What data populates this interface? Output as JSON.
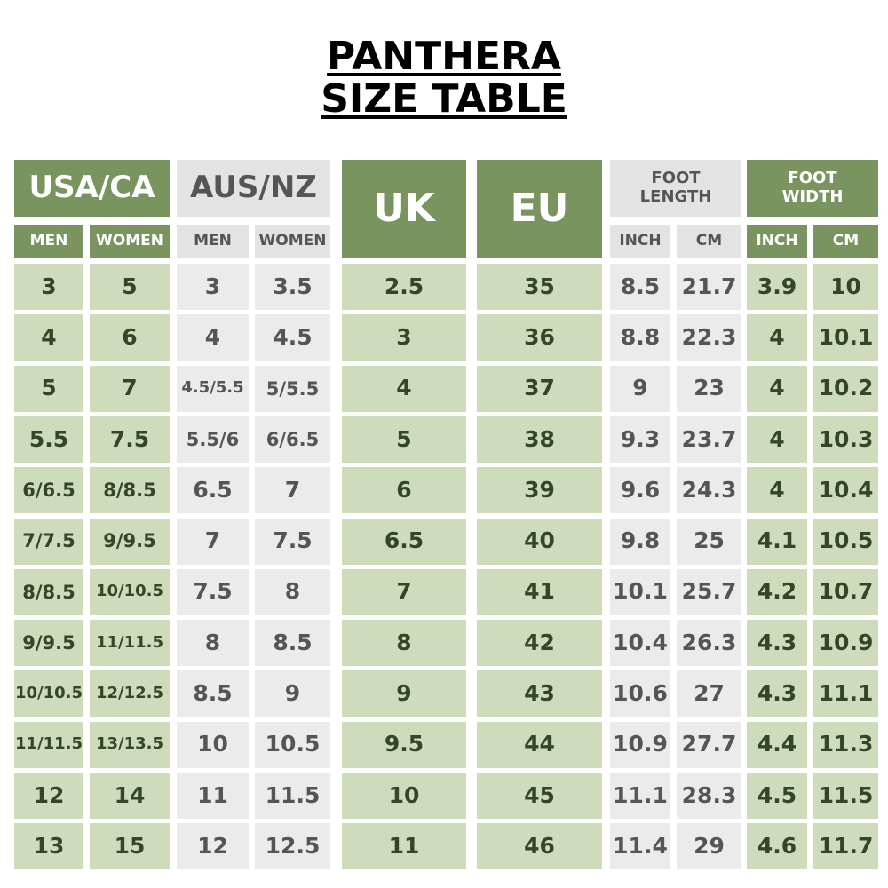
{
  "title": [
    "PANTHERA",
    "SIZE TABLE"
  ],
  "groups": [
    {
      "label": "USA/CA",
      "sub": [
        "MEN",
        "WOMEN"
      ]
    },
    {
      "label": "AUS/NZ",
      "sub": [
        "MEN",
        "WOMEN"
      ]
    },
    {
      "label": "UK"
    },
    {
      "label": "EU"
    },
    {
      "label": "FOOT LENGTH",
      "sub": [
        "INCH",
        "CM"
      ]
    },
    {
      "label": "FOOT WIDTH",
      "sub": [
        "INCH",
        "CM"
      ]
    }
  ],
  "rows": [
    [
      "3",
      "5",
      "3",
      "3.5",
      "2.5",
      "35",
      "8.5",
      "21.7",
      "3.9",
      "10"
    ],
    [
      "4",
      "6",
      "4",
      "4.5",
      "3",
      "36",
      "8.8",
      "22.3",
      "4",
      "10.1"
    ],
    [
      "5",
      "7",
      "4.5/5.5",
      "5/5.5",
      "4",
      "37",
      "9",
      "23",
      "4",
      "10.2"
    ],
    [
      "5.5",
      "7.5",
      "5.5/6",
      "6/6.5",
      "5",
      "38",
      "9.3",
      "23.7",
      "4",
      "10.3"
    ],
    [
      "6/6.5",
      "8/8.5",
      "6.5",
      "7",
      "6",
      "39",
      "9.6",
      "24.3",
      "4",
      "10.4"
    ],
    [
      "7/7.5",
      "9/9.5",
      "7",
      "7.5",
      "6.5",
      "40",
      "9.8",
      "25",
      "4.1",
      "10.5"
    ],
    [
      "8/8.5",
      "10/10.5",
      "7.5",
      "8",
      "7",
      "41",
      "10.1",
      "25.7",
      "4.2",
      "10.7"
    ],
    [
      "9/9.5",
      "11/11.5",
      "8",
      "8.5",
      "8",
      "42",
      "10.4",
      "26.3",
      "4.3",
      "10.9"
    ],
    [
      "10/10.5",
      "12/12.5",
      "8.5",
      "9",
      "9",
      "43",
      "10.6",
      "27",
      "4.3",
      "11.1"
    ],
    [
      "11/11.5",
      "13/13.5",
      "10",
      "10.5",
      "9.5",
      "44",
      "10.9",
      "27.7",
      "4.4",
      "11.3"
    ],
    [
      "12",
      "14",
      "11",
      "11.5",
      "10",
      "45",
      "11.1",
      "28.3",
      "4.5",
      "11.5"
    ],
    [
      "13",
      "15",
      "12",
      "12.5",
      "11",
      "46",
      "11.4",
      "29",
      "4.6",
      "11.7"
    ]
  ]
}
